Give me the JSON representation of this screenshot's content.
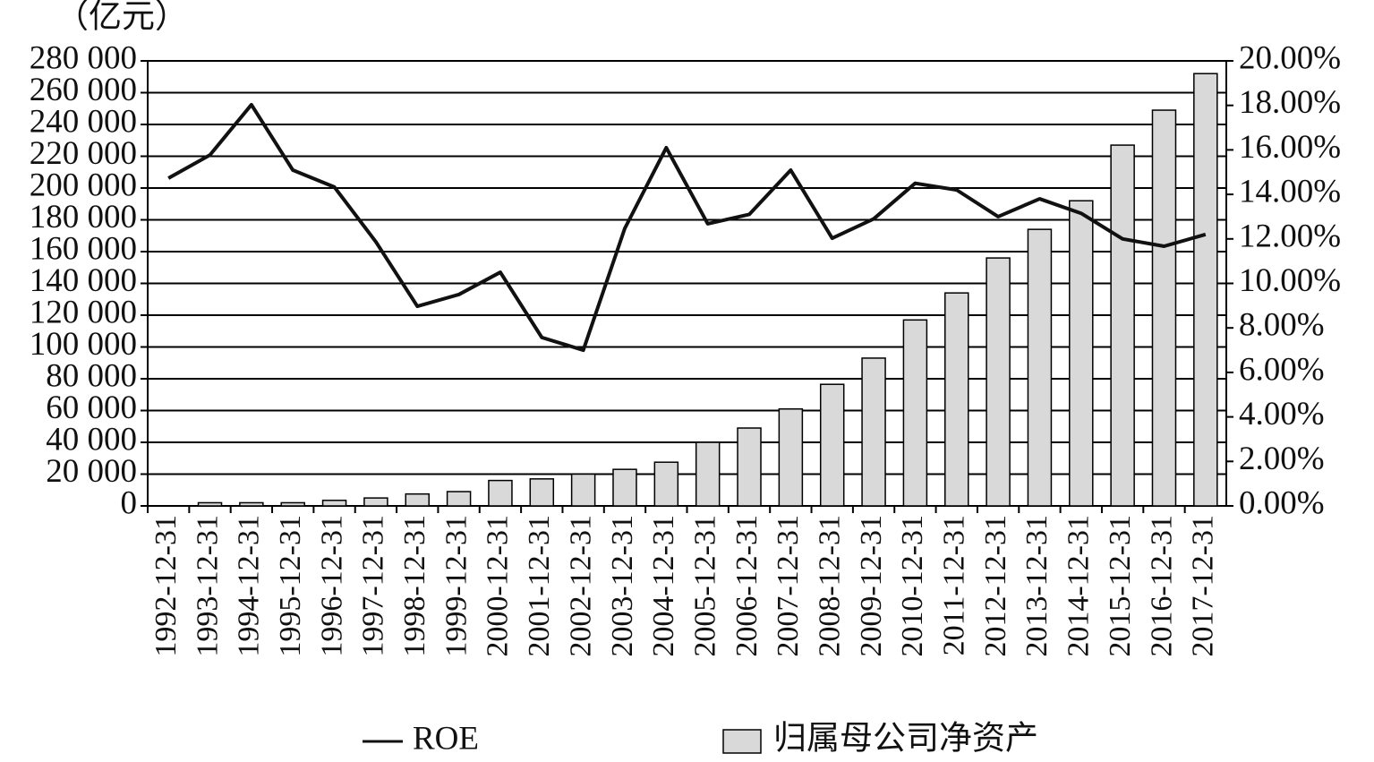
{
  "chart_data": {
    "type": "bar",
    "unit_label": "（亿元）",
    "categories": [
      "1992-12-31",
      "1993-12-31",
      "1994-12-31",
      "1995-12-31",
      "1996-12-31",
      "1997-12-31",
      "1998-12-31",
      "1999-12-31",
      "2000-12-31",
      "2001-12-31",
      "2002-12-31",
      "2003-12-31",
      "2004-12-31",
      "2005-12-31",
      "2006-12-31",
      "2007-12-31",
      "2008-12-31",
      "2009-12-31",
      "2010-12-31",
      "2011-12-31",
      "2012-12-31",
      "2013-12-31",
      "2014-12-31",
      "2015-12-31",
      "2016-12-31",
      "2017-12-31"
    ],
    "series": [
      {
        "name": "ROE",
        "type": "line",
        "axis": "y2",
        "color": "#111111",
        "values": [
          14.73,
          15.77,
          18.03,
          15.09,
          14.33,
          11.87,
          8.97,
          9.5,
          10.5,
          7.57,
          7.0,
          12.47,
          16.1,
          12.68,
          13.1,
          15.09,
          12.03,
          12.9,
          14.5,
          14.2,
          13.0,
          13.8,
          13.15,
          12.0,
          11.67,
          12.2
        ]
      },
      {
        "name": "归属母公司净资产",
        "type": "bar",
        "color": "#d9d9d9",
        "values": [
          0,
          2000,
          2000,
          2000,
          3500,
          5000,
          7500,
          9000,
          16000,
          17000,
          20000,
          23000,
          27500,
          40000,
          49000,
          61000,
          76500,
          93000,
          117000,
          134000,
          156000,
          174000,
          192000,
          227000,
          249000,
          272000
        ]
      }
    ],
    "ylim": [
      0,
      280000
    ],
    "yticks": [
      0,
      {
        "value": 20000,
        "label": "20 000"
      },
      {
        "value": 40000,
        "label": "40 000"
      },
      {
        "value": 60000,
        "label": "60 000"
      },
      {
        "value": 80000,
        "label": "80 000"
      },
      {
        "value": 100000,
        "label": "100 000"
      },
      {
        "value": 120000,
        "label": "120 000"
      },
      {
        "value": 140000,
        "label": "140 000"
      },
      {
        "value": 160000,
        "label": "160 000"
      },
      {
        "value": 180000,
        "label": "180 000"
      },
      {
        "value": 200000,
        "label": "200 000"
      },
      {
        "value": 220000,
        "label": "220 000"
      },
      {
        "value": 240000,
        "label": "240 000"
      },
      {
        "value": 260000,
        "label": "260 000"
      },
      {
        "value": 280000,
        "label": "280 000"
      }
    ],
    "y2lim": [
      0,
      20
    ],
    "y2ticks": [
      {
        "value": 0,
        "label": "0.00%"
      },
      {
        "value": 2,
        "label": "2.00%"
      },
      {
        "value": 4,
        "label": "4.00%"
      },
      {
        "value": 6,
        "label": "6.00%"
      },
      {
        "value": 8,
        "label": "8.00%"
      },
      {
        "value": 10,
        "label": "10.00%"
      },
      {
        "value": 12,
        "label": "12.00%"
      },
      {
        "value": 14,
        "label": "14.00%"
      },
      {
        "value": 16,
        "label": "16.00%"
      },
      {
        "value": 18,
        "label": "18.00%"
      },
      {
        "value": 20,
        "label": "20.00%"
      }
    ],
    "grid": true
  }
}
